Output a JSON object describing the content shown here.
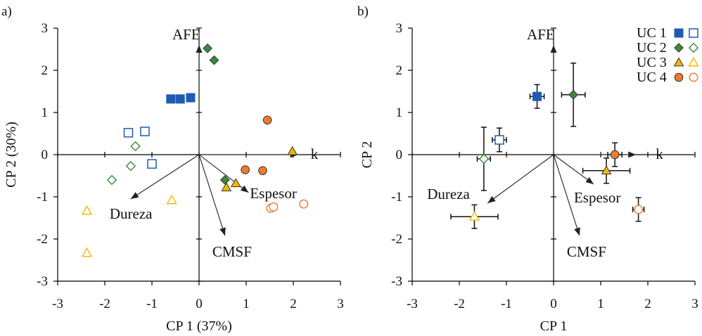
{
  "chart_data": [
    {
      "type": "scatter",
      "panel_label": "a)",
      "xlabel": "CP 1 (37%)",
      "ylabel": "CP 2 (30%)",
      "xlim": [
        -3,
        3
      ],
      "ylim": [
        -3,
        3
      ],
      "xticks": [
        "-3",
        "-2",
        "-1",
        "0",
        "1",
        "2",
        "3"
      ],
      "yticks": [
        "-3",
        "-2",
        "-1",
        "0",
        "1",
        "2",
        "3"
      ],
      "series": [
        {
          "key": "uc1",
          "marker": "square",
          "color": "#1f5bb5",
          "filled": [
            [
              -0.6,
              1.32
            ],
            [
              -0.4,
              1.32
            ],
            [
              -0.18,
              1.35
            ]
          ],
          "open": [
            [
              -1.5,
              0.52
            ],
            [
              -1.15,
              0.55
            ],
            [
              -1.0,
              -0.22
            ]
          ]
        },
        {
          "key": "uc2",
          "marker": "diamond",
          "color": "#3a8a3a",
          "filled": [
            [
              0.18,
              2.52
            ],
            [
              0.32,
              2.24
            ],
            [
              0.55,
              -0.6
            ]
          ],
          "open": [
            [
              -1.35,
              0.2
            ],
            [
              -1.45,
              -0.27
            ],
            [
              -1.85,
              -0.6
            ]
          ]
        },
        {
          "key": "uc3",
          "marker": "triangle",
          "color": "#f5b800",
          "filled": [
            [
              0.58,
              -0.78
            ],
            [
              0.78,
              -0.68
            ],
            [
              1.98,
              0.08
            ]
          ],
          "open": [
            [
              -0.58,
              -1.08
            ],
            [
              -2.38,
              -1.33
            ],
            [
              -2.38,
              -2.33
            ]
          ]
        },
        {
          "key": "uc4",
          "marker": "circle",
          "color": "#ef7a2a",
          "filled": [
            [
              1.45,
              0.82
            ],
            [
              0.98,
              -0.36
            ],
            [
              1.35,
              -0.38
            ]
          ],
          "open": [
            [
              1.52,
              -1.27
            ],
            [
              1.58,
              -1.24
            ],
            [
              2.22,
              -1.17
            ]
          ]
        }
      ],
      "vectors": [
        {
          "label": "AFE",
          "x": 0.0,
          "y": 2.6
        },
        {
          "label": "k",
          "x": 2.1,
          "y": 0.0
        },
        {
          "label": "Espesor",
          "x": 1.05,
          "y": -0.9
        },
        {
          "label": "Dureza",
          "x": -1.45,
          "y": -1.05
        },
        {
          "label": "CMSF",
          "x": 0.55,
          "y": -1.92
        }
      ]
    },
    {
      "type": "scatter",
      "panel_label": "b)",
      "xlabel": "CP 1",
      "ylabel": "CP 2",
      "xlim": [
        -3,
        3
      ],
      "ylim": [
        -3,
        3
      ],
      "xticks": [
        "-3",
        "-2",
        "-1",
        "0",
        "1",
        "2",
        "3"
      ],
      "yticks": [
        "-3",
        "-2",
        "-1",
        "0",
        "1",
        "2",
        "3"
      ],
      "series": [
        {
          "key": "uc1",
          "marker": "square",
          "color": "#1f5bb5",
          "filled": [
            {
              "x": -0.35,
              "y": 1.38,
              "ex": 0.15,
              "ey": 0.28
            }
          ],
          "open": [
            {
              "x": -1.15,
              "y": 0.35,
              "ex": 0.15,
              "ey": 0.28
            }
          ]
        },
        {
          "key": "uc2",
          "marker": "diamond",
          "color": "#3a8a3a",
          "filled": [
            {
              "x": 0.42,
              "y": 1.42,
              "ex": 0.25,
              "ey": 0.75
            }
          ],
          "open": [
            {
              "x": -1.48,
              "y": -0.1,
              "ex": 0.14,
              "ey": 0.75
            }
          ]
        },
        {
          "key": "uc3",
          "marker": "triangle",
          "color": "#f5b800",
          "filled": [
            {
              "x": 1.12,
              "y": -0.38,
              "ex": 0.5,
              "ey": 0.3
            }
          ],
          "open": [
            {
              "x": -1.68,
              "y": -1.47,
              "ex": 0.5,
              "ey": 0.28
            }
          ]
        },
        {
          "key": "uc4",
          "marker": "circle",
          "color": "#ef7a2a",
          "filled": [
            {
              "x": 1.3,
              "y": 0.0,
              "ex": 0.15,
              "ey": 0.28
            }
          ],
          "open": [
            {
              "x": 1.8,
              "y": -1.3,
              "ex": 0.12,
              "ey": 0.28
            }
          ]
        }
      ],
      "vectors": [
        {
          "label": "AFE",
          "x": 0.0,
          "y": 2.6
        },
        {
          "label": "k",
          "x": 1.75,
          "y": 0.0
        },
        {
          "label": "Espesor",
          "x": 0.85,
          "y": -0.7
        },
        {
          "label": "Dureza",
          "x": -1.4,
          "y": -1.15
        },
        {
          "label": "CMSF",
          "x": 0.55,
          "y": -1.92
        }
      ],
      "legend": {
        "placement": "top-right",
        "entries": [
          {
            "key": "uc1",
            "label": "UC 1"
          },
          {
            "key": "uc2",
            "label": "UC 2"
          },
          {
            "key": "uc3",
            "label": "UC 3"
          },
          {
            "key": "uc4",
            "label": "UC 4"
          }
        ]
      }
    }
  ]
}
